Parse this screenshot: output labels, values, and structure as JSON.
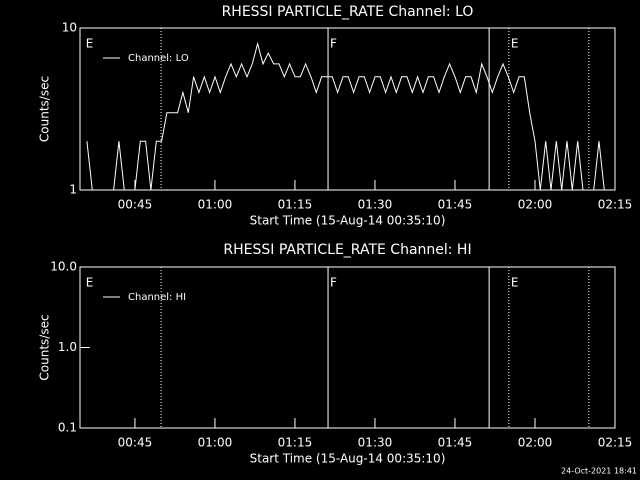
{
  "chart_data": [
    {
      "type": "line",
      "title": "RHESSI PARTICLE_RATE Channel: LO",
      "xlabel": "Start Time (15-Aug-14 00:35:10)",
      "ylabel": "Counts/sec",
      "log_y": true,
      "xlim": [
        34.7,
        135
      ],
      "ylim": [
        1,
        10
      ],
      "xticks": [
        {
          "value": 45,
          "label": "00:45"
        },
        {
          "value": 60,
          "label": "01:00"
        },
        {
          "value": 75,
          "label": "01:15"
        },
        {
          "value": 90,
          "label": "01:30"
        },
        {
          "value": 105,
          "label": "01:45"
        },
        {
          "value": 120,
          "label": "02:00"
        },
        {
          "value": 135,
          "label": "02:15"
        }
      ],
      "yticks": [
        1,
        10
      ],
      "x": [
        36,
        37,
        38,
        39,
        40,
        41,
        42,
        43,
        44,
        45,
        46,
        47,
        48,
        49,
        50,
        51,
        52,
        53,
        54,
        55,
        56,
        57,
        58,
        59,
        60,
        61,
        62,
        63,
        64,
        65,
        66,
        67,
        68,
        69,
        70,
        71,
        72,
        73,
        74,
        75,
        76,
        77,
        78,
        79,
        80,
        81,
        82,
        83,
        84,
        85,
        86,
        87,
        88,
        89,
        90,
        91,
        92,
        93,
        94,
        95,
        96,
        97,
        98,
        99,
        100,
        101,
        102,
        103,
        104,
        105,
        106,
        107,
        108,
        109,
        110,
        111,
        112,
        113,
        114,
        115,
        116,
        117,
        118,
        119,
        120,
        121,
        122,
        123,
        124,
        125,
        126,
        127,
        128,
        129,
        130,
        131,
        132,
        133,
        134
      ],
      "series": [
        {
          "name": "Channel: LO",
          "color": "#ffffff",
          "values": [
            2,
            1,
            1,
            1,
            1,
            1,
            2,
            1,
            1,
            1,
            2,
            2,
            1,
            2,
            2,
            3,
            3,
            3,
            4,
            3,
            5,
            4,
            5,
            4,
            5,
            4,
            5,
            6,
            5,
            6,
            5,
            6,
            8,
            6,
            7,
            6,
            6,
            5,
            6,
            5,
            5,
            6,
            5,
            4,
            5,
            5,
            5,
            4,
            5,
            5,
            4,
            5,
            5,
            4,
            5,
            5,
            4,
            5,
            4,
            5,
            5,
            4,
            5,
            4,
            5,
            5,
            4,
            5,
            6,
            5,
            4,
            5,
            5,
            4,
            6,
            5,
            4,
            5,
            6,
            5,
            4,
            5,
            5,
            3,
            2,
            1,
            2,
            1,
            2,
            1,
            2,
            1,
            2,
            1,
            1,
            1,
            2,
            1,
            1
          ]
        }
      ],
      "markers": [
        {
          "x": 35.4,
          "label": "E"
        },
        {
          "x": 49.9,
          "line": "dotted"
        },
        {
          "x": 81.2,
          "line": "solid",
          "label": "F"
        },
        {
          "x": 111.4,
          "line": "solid"
        },
        {
          "x": 115.1,
          "line": "dotted",
          "label": "E"
        },
        {
          "x": 130.1,
          "line": "dotted"
        }
      ]
    },
    {
      "type": "line",
      "title": "RHESSI PARTICLE_RATE Channel: HI",
      "xlabel": "Start Time (15-Aug-14 00:35:10)",
      "ylabel": "Counts/sec",
      "log_y": true,
      "xlim": [
        34.7,
        135
      ],
      "ylim": [
        0.1,
        10
      ],
      "xticks": [
        {
          "value": 45,
          "label": "00:45"
        },
        {
          "value": 60,
          "label": "01:00"
        },
        {
          "value": 75,
          "label": "01:15"
        },
        {
          "value": 90,
          "label": "01:30"
        },
        {
          "value": 105,
          "label": "01:45"
        },
        {
          "value": 120,
          "label": "02:00"
        },
        {
          "value": 135,
          "label": "02:15"
        }
      ],
      "yticks": [
        0.1,
        {
          "value": 1,
          "label": "1.0"
        },
        {
          "value": 10,
          "label": "10.0"
        }
      ],
      "x": [],
      "series": [
        {
          "name": "Channel: HI",
          "color": "#ffffff",
          "values": []
        }
      ],
      "markers": [
        {
          "x": 35.4,
          "label": "E"
        },
        {
          "x": 49.9,
          "line": "dotted"
        },
        {
          "x": 81.2,
          "line": "solid",
          "label": "F"
        },
        {
          "x": 111.4,
          "line": "solid"
        },
        {
          "x": 115.1,
          "line": "dotted",
          "label": "E"
        },
        {
          "x": 130.1,
          "line": "dotted"
        }
      ]
    }
  ],
  "footer": "24-Oct-2021 18:41"
}
